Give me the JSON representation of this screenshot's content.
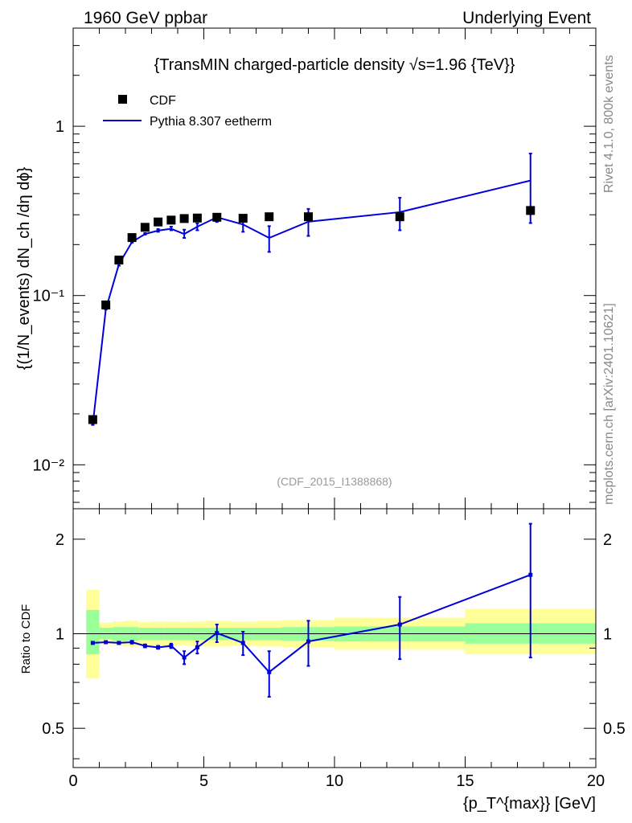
{
  "header": {
    "left": "1960 GeV ppbar",
    "right": "Underlying Event"
  },
  "side": {
    "rivet": "Rivet 4.1.0,  800k events",
    "mcplots": "mcplots.cern.ch [arXiv:2401.10621]"
  },
  "chart_data": [
    {
      "panel": "main",
      "type": "scatter",
      "title": "{TransMIN charged-particle density √s=1.96 {TeV}}",
      "ylabel": "{(1/N_events) dN_ch /dη dϕ}",
      "xlabel": "{p_T^{max}} [GeV]",
      "xlim": [
        0,
        20
      ],
      "ylim": [
        0.0055,
        3.8
      ],
      "yscale": "log",
      "ytick_labels": [
        "10⁻²",
        "10⁻¹",
        "1"
      ],
      "xtick_labels": [
        "0",
        "5",
        "10",
        "15",
        "20"
      ],
      "watermark": "(CDF_2015_I1388868)",
      "legend_position": "top-left",
      "series": [
        {
          "name": "CDF",
          "style": "markers",
          "color": "#000000",
          "x": [
            0.75,
            1.25,
            1.75,
            2.25,
            2.75,
            3.25,
            3.75,
            4.25,
            4.75,
            5.5,
            6.5,
            7.5,
            9.0,
            12.5,
            17.5
          ],
          "y": [
            0.0185,
            0.088,
            0.162,
            0.22,
            0.253,
            0.272,
            0.279,
            0.285,
            0.287,
            0.29,
            0.286,
            0.292,
            0.292,
            0.292,
            0.318
          ]
        },
        {
          "name": "Pythia 8.307 eetherm",
          "style": "line",
          "color": "#0000dd",
          "x": [
            0.75,
            1.25,
            1.75,
            2.25,
            2.75,
            3.25,
            3.75,
            4.25,
            4.75,
            5.5,
            6.5,
            7.5,
            9.0,
            12.5,
            17.5
          ],
          "y": [
            0.0173,
            0.083,
            0.153,
            0.207,
            0.231,
            0.242,
            0.248,
            0.231,
            0.255,
            0.29,
            0.263,
            0.219,
            0.273,
            0.311,
            0.478
          ],
          "err_low": [
            0.0175,
            0.0826,
            0.15,
            0.205,
            0.229,
            0.238,
            0.243,
            0.219,
            0.243,
            0.272,
            0.238,
            0.181,
            0.225,
            0.243,
            0.268
          ],
          "err_high": [
            0.0172,
            0.0835,
            0.157,
            0.21,
            0.234,
            0.247,
            0.255,
            0.245,
            0.267,
            0.304,
            0.288,
            0.257,
            0.325,
            0.378,
            0.69
          ]
        }
      ]
    },
    {
      "panel": "ratio",
      "type": "line",
      "ylabel": "Ratio to CDF",
      "xlim": [
        0,
        20
      ],
      "ylim": [
        0.375,
        2.5
      ],
      "yscale": "log",
      "ytick_labels": [
        "0.5",
        "1",
        "2"
      ],
      "xtick_labels": [
        "0",
        "5",
        "10",
        "15",
        "20"
      ],
      "bands": {
        "edges": [
          0.5,
          1.0,
          1.5,
          2.0,
          2.5,
          3.0,
          3.5,
          4.0,
          4.5,
          5.0,
          6.0,
          7.0,
          8.0,
          10.0,
          15.0,
          20.0
        ],
        "green_low": [
          0.86,
          0.96,
          0.95,
          0.95,
          0.955,
          0.955,
          0.955,
          0.955,
          0.955,
          0.955,
          0.955,
          0.955,
          0.95,
          0.945,
          0.93
        ],
        "green_high": [
          1.19,
          1.045,
          1.05,
          1.05,
          1.045,
          1.045,
          1.045,
          1.045,
          1.045,
          1.045,
          1.045,
          1.045,
          1.05,
          1.055,
          1.08
        ],
        "yellow_low": [
          0.72,
          0.93,
          0.915,
          0.91,
          0.92,
          0.915,
          0.915,
          0.92,
          0.915,
          0.91,
          0.915,
          0.91,
          0.905,
          0.89,
          0.86
        ],
        "yellow_high": [
          1.38,
          1.085,
          1.095,
          1.1,
          1.09,
          1.095,
          1.095,
          1.09,
          1.095,
          1.1,
          1.095,
          1.1,
          1.105,
          1.125,
          1.2
        ]
      },
      "series": [
        {
          "name": "Pythia 8.307 eetherm / CDF",
          "color": "#0000dd",
          "x": [
            0.75,
            1.25,
            1.75,
            2.25,
            2.75,
            3.25,
            3.75,
            4.25,
            4.75,
            5.5,
            6.5,
            7.5,
            9.0,
            12.5,
            17.5
          ],
          "y": [
            0.935,
            0.94,
            0.935,
            0.94,
            0.915,
            0.905,
            0.915,
            0.84,
            0.905,
            1.005,
            0.935,
            0.755,
            0.945,
            1.07,
            1.54
          ],
          "err_low": [
            0.93,
            0.935,
            0.93,
            0.93,
            0.905,
            0.895,
            0.9,
            0.8,
            0.865,
            0.94,
            0.855,
            0.63,
            0.79,
            0.83,
            0.84
          ],
          "err_high": [
            0.94,
            0.945,
            0.94,
            0.95,
            0.925,
            0.915,
            0.93,
            0.88,
            0.945,
            1.07,
            1.015,
            0.88,
            1.1,
            1.31,
            2.24
          ]
        }
      ]
    }
  ]
}
